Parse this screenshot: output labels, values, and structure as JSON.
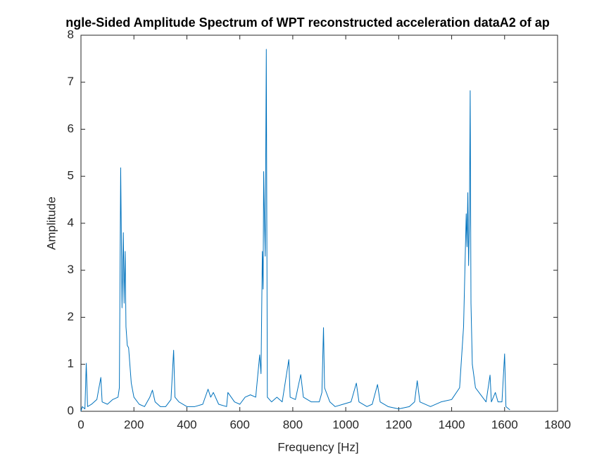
{
  "chart_data": {
    "type": "line",
    "title": "ngle-Sided Amplitude Spectrum of WPT reconstructed acceleration dataA2 of ap",
    "xlabel": "Frequency [Hz]",
    "ylabel": "Amplitude",
    "xlim": [
      0,
      1800
    ],
    "ylim": [
      0,
      8
    ],
    "xticks": [
      0,
      200,
      400,
      600,
      800,
      1000,
      1200,
      1400,
      1600,
      1800
    ],
    "yticks": [
      0,
      1,
      2,
      3,
      4,
      5,
      6,
      7,
      8
    ],
    "grid": false,
    "series": [
      {
        "color": "#0072bd",
        "x": [
          0,
          5,
          15,
          20,
          25,
          40,
          60,
          75,
          80,
          100,
          120,
          140,
          145,
          150,
          155,
          160,
          163,
          167,
          170,
          175,
          180,
          190,
          200,
          220,
          240,
          260,
          270,
          280,
          300,
          320,
          340,
          350,
          355,
          370,
          400,
          430,
          460,
          480,
          490,
          500,
          520,
          550,
          555,
          580,
          600,
          620,
          640,
          660,
          670,
          675,
          680,
          685,
          688,
          690,
          693,
          696,
          700,
          704,
          720,
          740,
          760,
          785,
          790,
          810,
          830,
          840,
          870,
          900,
          910,
          916,
          920,
          940,
          960,
          990,
          1020,
          1040,
          1050,
          1080,
          1100,
          1120,
          1130,
          1160,
          1200,
          1240,
          1260,
          1270,
          1280,
          1320,
          1360,
          1400,
          1430,
          1445,
          1455,
          1458,
          1461,
          1464,
          1467,
          1470,
          1473,
          1478,
          1490,
          1510,
          1530,
          1545,
          1550,
          1565,
          1575,
          1590,
          1600,
          1605,
          1620
        ],
        "values": [
          0,
          0.1,
          0.05,
          1.02,
          0.1,
          0.15,
          0.25,
          0.72,
          0.2,
          0.15,
          0.25,
          0.3,
          0.5,
          5.18,
          2.2,
          3.8,
          2.3,
          3.4,
          1.8,
          1.4,
          1.35,
          0.6,
          0.3,
          0.15,
          0.1,
          0.3,
          0.45,
          0.2,
          0.1,
          0.1,
          0.25,
          1.3,
          0.3,
          0.2,
          0.1,
          0.1,
          0.15,
          0.47,
          0.3,
          0.4,
          0.15,
          0.1,
          0.4,
          0.2,
          0.15,
          0.3,
          0.35,
          0.3,
          0.9,
          1.2,
          0.8,
          3.4,
          2.6,
          5.1,
          4.1,
          3.3,
          7.7,
          0.3,
          0.2,
          0.3,
          0.2,
          1.1,
          0.3,
          0.25,
          0.78,
          0.3,
          0.2,
          0.2,
          0.4,
          1.78,
          0.5,
          0.2,
          0.1,
          0.15,
          0.2,
          0.6,
          0.2,
          0.1,
          0.15,
          0.57,
          0.2,
          0.1,
          0.05,
          0.1,
          0.2,
          0.65,
          0.2,
          0.1,
          0.2,
          0.25,
          0.5,
          1.8,
          4.2,
          3.5,
          4.65,
          3.1,
          4.0,
          6.82,
          2.3,
          1.0,
          0.5,
          0.35,
          0.2,
          0.77,
          0.2,
          0.4,
          0.2,
          0.2,
          1.22,
          0.1,
          0.03
        ]
      }
    ]
  }
}
